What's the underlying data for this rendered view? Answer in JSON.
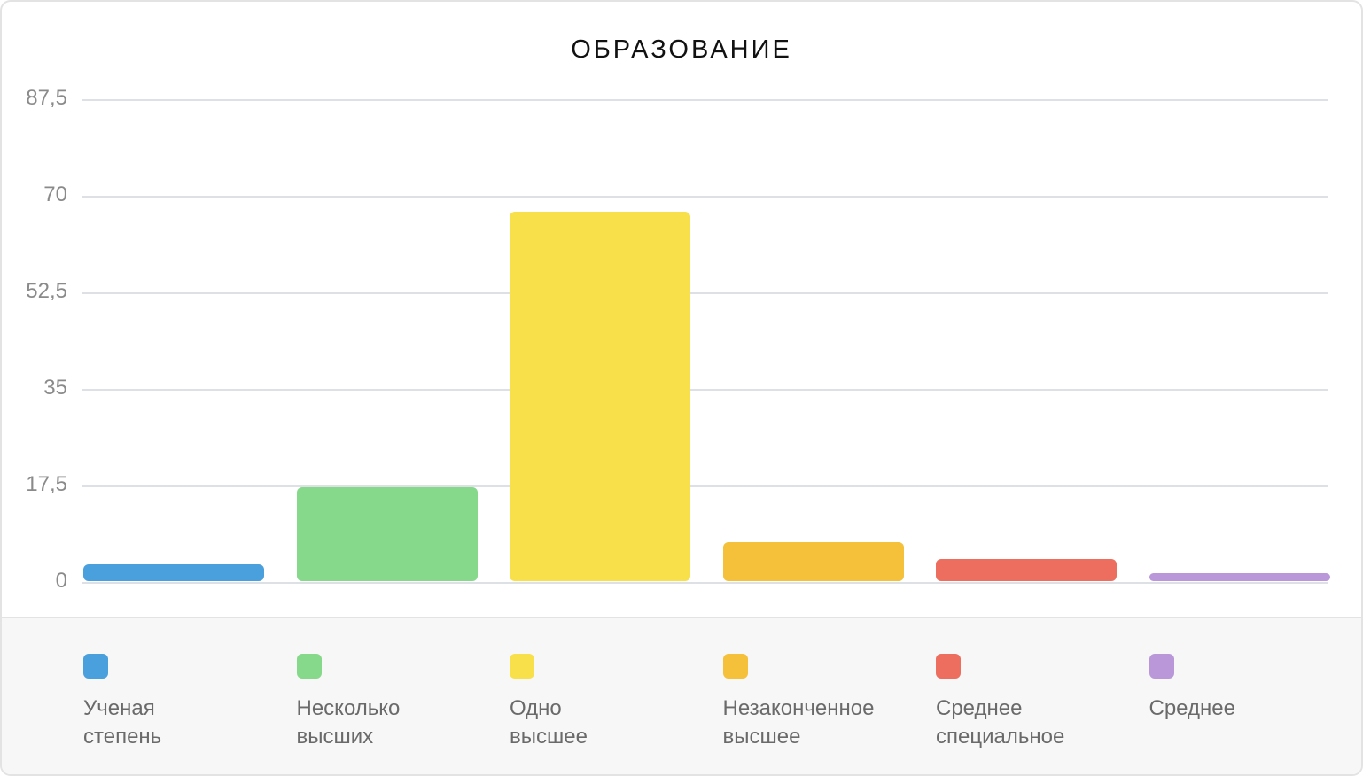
{
  "chart_data": {
    "type": "bar",
    "title": "ОБРАЗОВАНИЕ",
    "xlabel": "",
    "ylabel": "",
    "ylim": [
      0,
      87.5
    ],
    "yticks": [
      "0",
      "17,5",
      "35",
      "52,5",
      "70",
      "87,5"
    ],
    "grid": true,
    "legend_position": "bottom",
    "categories": [
      "Ученая степень",
      "Несколько высших",
      "Одно высшее",
      "Незаконченное высшее",
      "Среднее специальное",
      "Среднее"
    ],
    "values": [
      3,
      17,
      67,
      7,
      4,
      1.5
    ],
    "colors": [
      "#4aa0dc",
      "#86d98a",
      "#f7e04a",
      "#f5c13a",
      "#ed6e5e",
      "#b997d9"
    ]
  },
  "title": "ОБРАЗОВАНИЕ",
  "yaxis": {
    "ticks": [
      {
        "label": "87,5",
        "value": 87.5
      },
      {
        "label": "70",
        "value": 70
      },
      {
        "label": "52,5",
        "value": 52.5
      },
      {
        "label": "35",
        "value": 35
      },
      {
        "label": "17,5",
        "value": 17.5
      },
      {
        "label": "0",
        "value": 0
      }
    ]
  },
  "legend": {
    "items": [
      {
        "label": "Ученая\nстепень",
        "color": "#4aa0dc"
      },
      {
        "label": "Несколько\nвысших",
        "color": "#86d98a"
      },
      {
        "label": "Одно\nвысшее",
        "color": "#f7e04a"
      },
      {
        "label": "Незаконченное\nвысшее",
        "color": "#f5c13a"
      },
      {
        "label": "Среднее\nспециальное",
        "color": "#ed6e5e"
      },
      {
        "label": "Среднее",
        "color": "#b997d9"
      }
    ]
  }
}
